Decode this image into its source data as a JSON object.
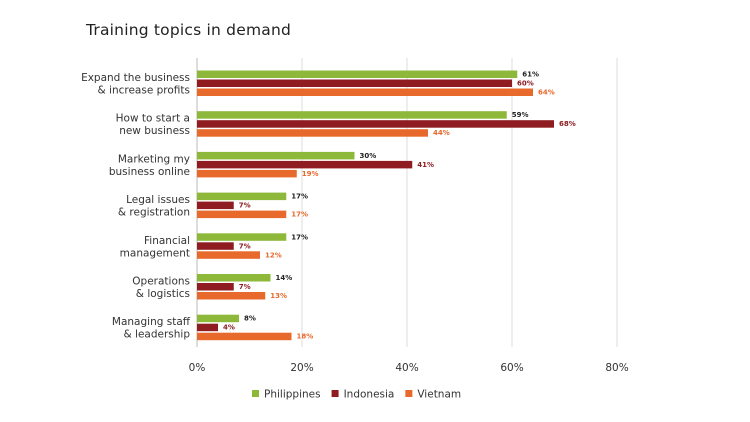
{
  "chart_data": {
    "type": "bar",
    "orientation": "horizontal",
    "title": "Training topics in demand",
    "xlabel": "",
    "ylabel": "",
    "xlim": [
      0,
      80
    ],
    "xticks": [
      "0%",
      "20%",
      "40%",
      "60%",
      "80%"
    ],
    "grid": true,
    "legend_position": "bottom",
    "categories": [
      [
        "Expand the business",
        "& increase profits"
      ],
      [
        "How to start a",
        "new business"
      ],
      [
        "Marketing my",
        "business online"
      ],
      [
        "Legal issues",
        "& registration"
      ],
      [
        "Financial",
        "management"
      ],
      [
        "Operations",
        "& logistics"
      ],
      [
        "Managing staff",
        "& leadership"
      ]
    ],
    "series": [
      {
        "name": "Philippines",
        "color": "#8db83a",
        "label_color": "#222222",
        "values": [
          61,
          59,
          30,
          17,
          17,
          14,
          8
        ]
      },
      {
        "name": "Indonesia",
        "color": "#8e1c20",
        "label_color": "#8e1c20",
        "values": [
          60,
          68,
          41,
          7,
          7,
          7,
          4
        ]
      },
      {
        "name": "Vietnam",
        "color": "#e8692c",
        "label_color": "#e8692c",
        "values": [
          64,
          44,
          19,
          17,
          12,
          13,
          18
        ]
      }
    ]
  }
}
